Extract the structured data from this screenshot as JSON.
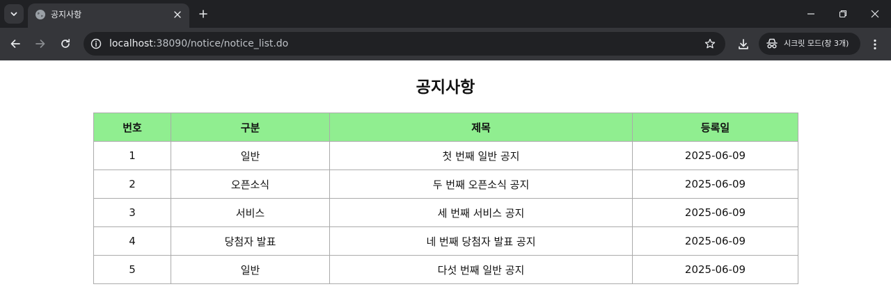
{
  "browser": {
    "tab": {
      "title": "공지사항"
    },
    "address_bar": {
      "host": "localhost",
      "rest": ":38090/notice/notice_list.do"
    },
    "incognito_label": "시크릿 모드(창 3개)"
  },
  "page": {
    "title": "공지사항",
    "table": {
      "headers": [
        "번호",
        "구분",
        "제목",
        "등록일"
      ],
      "rows": [
        [
          "1",
          "일반",
          "첫 번째 일반 공지",
          "2025-06-09"
        ],
        [
          "2",
          "오픈소식",
          "두 번째 오픈소식 공지",
          "2025-06-09"
        ],
        [
          "3",
          "서비스",
          "세 번째 서비스 공지",
          "2025-06-09"
        ],
        [
          "4",
          "당첨자 발표",
          "네 번째 당첨자 발표 공지",
          "2025-06-09"
        ],
        [
          "5",
          "일반",
          "다섯 번째 일반 공지",
          "2025-06-09"
        ]
      ]
    }
  },
  "colors": {
    "header_bg": "#90ee90",
    "chrome_dark": "#202124",
    "chrome_toolbar": "#35363a",
    "border": "#aaaaaa"
  },
  "icons": {
    "tab_search": "chevron-down-icon",
    "favicon": "globe-icon",
    "tab_close": "close-icon",
    "new_tab": "plus-icon",
    "back": "arrow-left-icon",
    "forward": "arrow-right-icon",
    "reload": "reload-icon",
    "site_info": "info-icon",
    "bookmark": "star-icon",
    "download": "download-icon",
    "incognito": "incognito-icon",
    "menu": "kebab-menu-icon"
  }
}
